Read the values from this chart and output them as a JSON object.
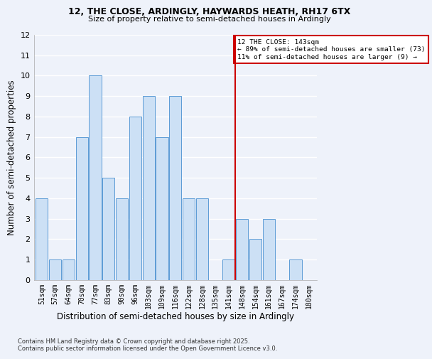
{
  "title": "12, THE CLOSE, ARDINGLY, HAYWARDS HEATH, RH17 6TX",
  "subtitle": "Size of property relative to semi-detached houses in Ardingly",
  "xlabel": "Distribution of semi-detached houses by size in Ardingly",
  "ylabel": "Number of semi-detached properties",
  "categories": [
    "51sqm",
    "57sqm",
    "64sqm",
    "70sqm",
    "77sqm",
    "83sqm",
    "90sqm",
    "96sqm",
    "103sqm",
    "109sqm",
    "116sqm",
    "122sqm",
    "128sqm",
    "135sqm",
    "141sqm",
    "148sqm",
    "154sqm",
    "161sqm",
    "167sqm",
    "174sqm",
    "180sqm"
  ],
  "values": [
    4,
    1,
    1,
    7,
    10,
    5,
    4,
    8,
    9,
    7,
    9,
    4,
    4,
    0,
    1,
    3,
    2,
    3,
    0,
    1,
    0
  ],
  "bar_color": "#cce0f5",
  "bar_edge_color": "#5b9bd5",
  "vline_index": 14.5,
  "vline_color": "#cc0000",
  "annotation_title": "12 THE CLOSE: 143sqm",
  "annotation_line1": "← 89% of semi-detached houses are smaller (73)",
  "annotation_line2": "11% of semi-detached houses are larger (9) →",
  "annotation_box_color": "#cc0000",
  "ylim": [
    0,
    12
  ],
  "yticks": [
    0,
    1,
    2,
    3,
    4,
    5,
    6,
    7,
    8,
    9,
    10,
    11,
    12
  ],
  "footer_line1": "Contains HM Land Registry data © Crown copyright and database right 2025.",
  "footer_line2": "Contains public sector information licensed under the Open Government Licence v3.0.",
  "bg_color": "#eef2fa",
  "grid_color": "#ffffff"
}
